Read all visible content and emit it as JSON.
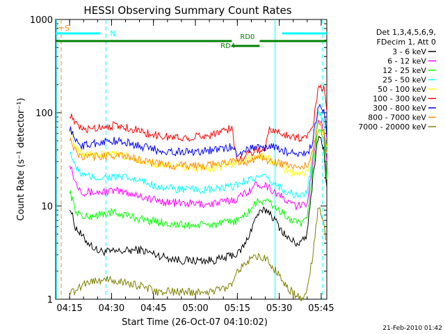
{
  "chart_data": {
    "type": "line",
    "title": "HESSI Observing Summary Count Rates",
    "xlabel": "Start Time (26-Oct-07 04:10:02)",
    "ylabel": "Count Rate (s⁻¹ detector⁻¹)",
    "yscale": "log",
    "ylim": [
      1,
      1000
    ],
    "xlim_minutes": [
      0,
      97
    ],
    "x_ticks": [
      {
        "label": "04:15",
        "value": 5
      },
      {
        "label": "04:30",
        "value": 20
      },
      {
        "label": "04:45",
        "value": 35
      },
      {
        "label": "05:00",
        "value": 50
      },
      {
        "label": "05:15",
        "value": 65
      },
      {
        "label": "05:30",
        "value": 80
      },
      {
        "label": "05:45",
        "value": 95
      }
    ],
    "y_ticks": [
      {
        "label": "1",
        "value": 1
      },
      {
        "label": "10",
        "value": 10
      },
      {
        "label": "100",
        "value": 100
      },
      {
        "label": "1000",
        "value": 1000
      }
    ],
    "legend_title_lines": [
      "Det 1,3,4,5,6,9,",
      "FDecim 1, Att 0"
    ],
    "legend_position": "right",
    "series": [
      {
        "name": "3 - 6 keV",
        "color": "#000000",
        "x": [
          5,
          7,
          10,
          15,
          20,
          25,
          30,
          33,
          36,
          40,
          45,
          50,
          55,
          60,
          63,
          65,
          68,
          72,
          75,
          76,
          80,
          83,
          86,
          88,
          90,
          92,
          94,
          96,
          97
        ],
        "values": [
          10,
          6,
          4.5,
          3.3,
          3.2,
          3.3,
          3.4,
          3.2,
          3,
          2.8,
          2.6,
          2.6,
          2.6,
          2.7,
          3,
          3,
          4,
          8,
          9,
          9,
          6,
          4.5,
          4,
          4,
          5,
          20,
          60,
          40,
          15
        ]
      },
      {
        "name": "6 - 12 keV",
        "color": "#ff00ff",
        "x": [
          5,
          7,
          10,
          15,
          20,
          25,
          30,
          33,
          36,
          40,
          45,
          50,
          55,
          60,
          63,
          65,
          68,
          72,
          75,
          76,
          80,
          83,
          86,
          88,
          90,
          92,
          94,
          96,
          97
        ],
        "values": [
          30,
          18,
          14,
          14,
          14.5,
          14,
          13,
          12,
          11.5,
          11,
          10.7,
          10.5,
          10.5,
          11,
          11.5,
          12,
          14,
          17,
          17,
          16,
          13,
          11,
          10,
          10,
          11,
          30,
          90,
          60,
          30
        ]
      },
      {
        "name": "12 - 25 keV",
        "color": "#00ff00",
        "x": [
          5,
          7,
          10,
          15,
          20,
          25,
          30,
          33,
          36,
          40,
          45,
          50,
          55,
          60,
          63,
          65,
          68,
          72,
          75,
          76,
          80,
          83,
          86,
          88,
          90,
          92,
          94,
          96,
          97
        ],
        "values": [
          15,
          9,
          7.5,
          8,
          8.5,
          8,
          7.3,
          7,
          6.8,
          6.5,
          6.2,
          6.2,
          6.3,
          6.5,
          6.8,
          7,
          8,
          11,
          11.5,
          11,
          9,
          7.5,
          6.5,
          6.5,
          7,
          25,
          70,
          50,
          20
        ]
      },
      {
        "name": "25 - 50 keV",
        "color": "#00ffff",
        "x": [
          5,
          7,
          10,
          15,
          20,
          25,
          30,
          33,
          36,
          40,
          45,
          50,
          55,
          60,
          63,
          65,
          68,
          72,
          75,
          76,
          80,
          83,
          86,
          88,
          90,
          92,
          94,
          96,
          97
        ],
        "values": [
          40,
          26,
          21,
          20,
          20.5,
          20,
          18.5,
          17.5,
          16.5,
          15.5,
          15,
          14.8,
          14.8,
          15.5,
          16,
          17,
          19,
          20,
          20,
          19,
          16,
          14,
          13,
          13,
          14,
          35,
          110,
          75,
          40
        ]
      },
      {
        "name": "50 - 100 keV",
        "color": "#ffff00",
        "x": [
          5,
          7,
          10,
          15,
          20,
          25,
          30,
          33,
          36,
          40,
          45,
          50,
          55,
          60,
          63,
          65,
          68,
          72,
          75,
          76,
          80,
          83,
          86,
          88,
          90,
          92,
          94,
          96,
          97
        ],
        "values": [
          70,
          45,
          36,
          35,
          35.5,
          34,
          31,
          29.5,
          28,
          26.5,
          26,
          25.5,
          25.5,
          27,
          28,
          29,
          32,
          34,
          34,
          32,
          27,
          24,
          22,
          22,
          23,
          40,
          80,
          60,
          40
        ]
      },
      {
        "name": "100 - 300 keV",
        "color": "#ff0000",
        "x": [
          5,
          7,
          10,
          15,
          20,
          25,
          30,
          33,
          36,
          40,
          45,
          50,
          55,
          60,
          63,
          65,
          68,
          72,
          75,
          76,
          80,
          83,
          86,
          88,
          90,
          92,
          94,
          96,
          97
        ],
        "values": [
          100,
          75,
          65,
          70,
          73,
          70,
          64,
          60,
          57,
          55,
          54,
          55,
          58,
          64,
          68,
          30,
          36,
          40,
          40,
          65,
          61,
          58,
          55,
          53,
          55,
          70,
          200,
          180,
          100
        ]
      },
      {
        "name": "300 - 800 keV",
        "color": "#0000ff",
        "x": [
          5,
          7,
          10,
          15,
          20,
          25,
          30,
          33,
          36,
          40,
          45,
          50,
          55,
          60,
          63,
          65,
          68,
          72,
          75,
          76,
          80,
          83,
          86,
          88,
          90,
          92,
          94,
          96,
          97
        ],
        "values": [
          70,
          50,
          44,
          48,
          50,
          48,
          44,
          42,
          40,
          38.5,
          38,
          38.5,
          39.5,
          41,
          43,
          36,
          40,
          43,
          42,
          44,
          41,
          38,
          36,
          35,
          36,
          50,
          120,
          100,
          55
        ]
      },
      {
        "name": "800 - 7000 keV",
        "color": "#ff8c00",
        "x": [
          5,
          7,
          10,
          15,
          20,
          25,
          30,
          33,
          36,
          40,
          45,
          50,
          55,
          60,
          63,
          65,
          68,
          72,
          75,
          76,
          80,
          83,
          86,
          88,
          90,
          92,
          94,
          96,
          97
        ],
        "values": [
          55,
          38,
          33,
          34,
          35,
          34,
          31.5,
          30,
          28.5,
          27.5,
          27,
          27,
          27.5,
          29,
          30,
          29,
          30,
          32,
          32,
          31,
          29,
          27,
          26,
          26,
          27,
          40,
          85,
          60,
          40
        ]
      },
      {
        "name": "7000 - 20000 keV",
        "color": "#808000",
        "x": [
          5,
          7,
          10,
          15,
          20,
          25,
          30,
          33,
          36,
          40,
          45,
          50,
          55,
          60,
          63,
          65,
          68,
          72,
          75,
          76,
          80,
          83,
          86,
          88,
          90,
          92,
          94,
          96,
          97
        ],
        "values": [
          1.2,
          1.2,
          1.5,
          1.6,
          1.6,
          1.5,
          1.4,
          1.3,
          1.2,
          1.2,
          1.2,
          1.2,
          1.2,
          1.3,
          1.5,
          2,
          2.5,
          2.8,
          2.8,
          2.6,
          1.8,
          1.3,
          1.1,
          1,
          1.2,
          3,
          10,
          6,
          4
        ]
      }
    ],
    "annotations": [
      {
        "label": "S",
        "color": "#ff8c00",
        "x_min": 2
      },
      {
        "label": "N",
        "color": "#00ffff",
        "x_min": 18
      },
      {
        "label": "RD0",
        "color": "#008000",
        "x_min": 66
      },
      {
        "label": "RD4",
        "color": "#008000",
        "x_min": 59
      }
    ],
    "vertical_lines": [
      {
        "x_min": 0.3,
        "color": "#00ffff",
        "style": "solid"
      },
      {
        "x_min": 2,
        "color": "#ff8c00",
        "style": "dashed"
      },
      {
        "x_min": 18,
        "color": "#00ffff",
        "style": "dashed"
      },
      {
        "x_min": 78.5,
        "color": "#00ffff",
        "style": "solid"
      },
      {
        "x_min": 95.5,
        "color": "#00ffff",
        "style": "dashed"
      }
    ],
    "footer_date": "21-Feb-2010 01:42"
  }
}
